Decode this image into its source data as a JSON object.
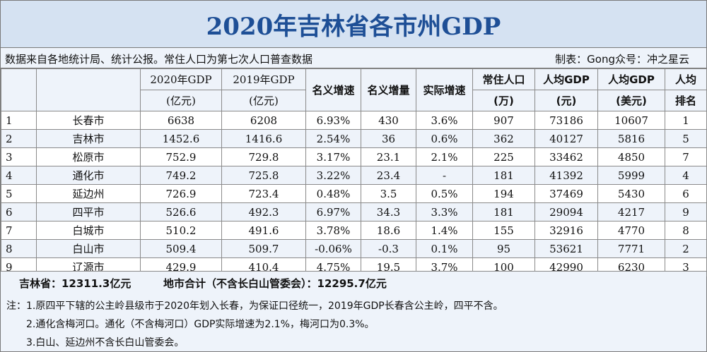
{
  "title": "2020年吉林省各市州GDP",
  "source": "数据来自各地统计局、统计公报。常住人口为第七次人口普查数据",
  "credit": "制表：Gong众号：冲之星云",
  "headers": {
    "gdp2020": [
      "2020年GDP",
      "(亿元)"
    ],
    "gdp2019": [
      "2019年GDP",
      "(亿元)"
    ],
    "nominal_growth": "名义增速",
    "nominal_increase": "名义增量",
    "real_growth": "实际增速",
    "population": [
      "常住人口",
      "(万)"
    ],
    "per_capita_cny": [
      "人均GDP",
      "(元)"
    ],
    "per_capita_usd": [
      "人均GDP",
      "(美元)"
    ],
    "per_capita_rank": [
      "人均",
      "排名"
    ]
  },
  "rows": [
    {
      "idx": "1",
      "city": "长春市",
      "gdp2020": "6638",
      "gdp2019": "6208",
      "ng": "6.93%",
      "ni": "430",
      "rg": "3.6%",
      "pop": "907",
      "pc_cny": "73186",
      "pc_usd": "10607",
      "rank": "1"
    },
    {
      "idx": "2",
      "city": "吉林市",
      "gdp2020": "1452.6",
      "gdp2019": "1416.6",
      "ng": "2.54%",
      "ni": "36",
      "rg": "0.6%",
      "pop": "362",
      "pc_cny": "40127",
      "pc_usd": "5816",
      "rank": "5"
    },
    {
      "idx": "3",
      "city": "松原市",
      "gdp2020": "752.9",
      "gdp2019": "729.8",
      "ng": "3.17%",
      "ni": "23.1",
      "rg": "2.1%",
      "pop": "225",
      "pc_cny": "33462",
      "pc_usd": "4850",
      "rank": "7"
    },
    {
      "idx": "4",
      "city": "通化市",
      "gdp2020": "749.2",
      "gdp2019": "725.8",
      "ng": "3.22%",
      "ni": "23.4",
      "rg": "-",
      "pop": "181",
      "pc_cny": "41392",
      "pc_usd": "5999",
      "rank": "4"
    },
    {
      "idx": "5",
      "city": "延边州",
      "gdp2020": "726.9",
      "gdp2019": "723.4",
      "ng": "0.48%",
      "ni": "3.5",
      "rg": "0.5%",
      "pop": "194",
      "pc_cny": "37469",
      "pc_usd": "5430",
      "rank": "6"
    },
    {
      "idx": "6",
      "city": "四平市",
      "gdp2020": "526.6",
      "gdp2019": "492.3",
      "ng": "6.97%",
      "ni": "34.3",
      "rg": "3.3%",
      "pop": "181",
      "pc_cny": "29094",
      "pc_usd": "4217",
      "rank": "9"
    },
    {
      "idx": "7",
      "city": "白城市",
      "gdp2020": "510.2",
      "gdp2019": "491.6",
      "ng": "3.78%",
      "ni": "18.6",
      "rg": "1.4%",
      "pop": "155",
      "pc_cny": "32916",
      "pc_usd": "4770",
      "rank": "8"
    },
    {
      "idx": "8",
      "city": "白山市",
      "gdp2020": "509.4",
      "gdp2019": "509.7",
      "ng": "-0.06%",
      "ni": "-0.3",
      "rg": "0.1%",
      "pop": "95",
      "pc_cny": "53621",
      "pc_usd": "7771",
      "rank": "2"
    },
    {
      "idx": "9",
      "city": "辽源市",
      "gdp2020": "429.9",
      "gdp2019": "410.4",
      "ng": "4.75%",
      "ni": "19.5",
      "rg": "3.7%",
      "pop": "100",
      "pc_cny": "42990",
      "pc_usd": "6230",
      "rank": "3"
    }
  ],
  "totals": {
    "province": "吉林省：12311.3亿元",
    "city_sum": "地市合计（不含长白山管委会）：12295.7亿元"
  },
  "notes": [
    "注：1.原四平下辖的公主岭县级市于2020年划入长春，为保证口径统一，2019年GDP长春含公主岭，四平不含。",
    "2.通化含梅河口。通化（不含梅河口）GDP实际增速为2.1%，梅河口为0.3%。",
    "3.白山、延边州不含长白山管委会。"
  ]
}
